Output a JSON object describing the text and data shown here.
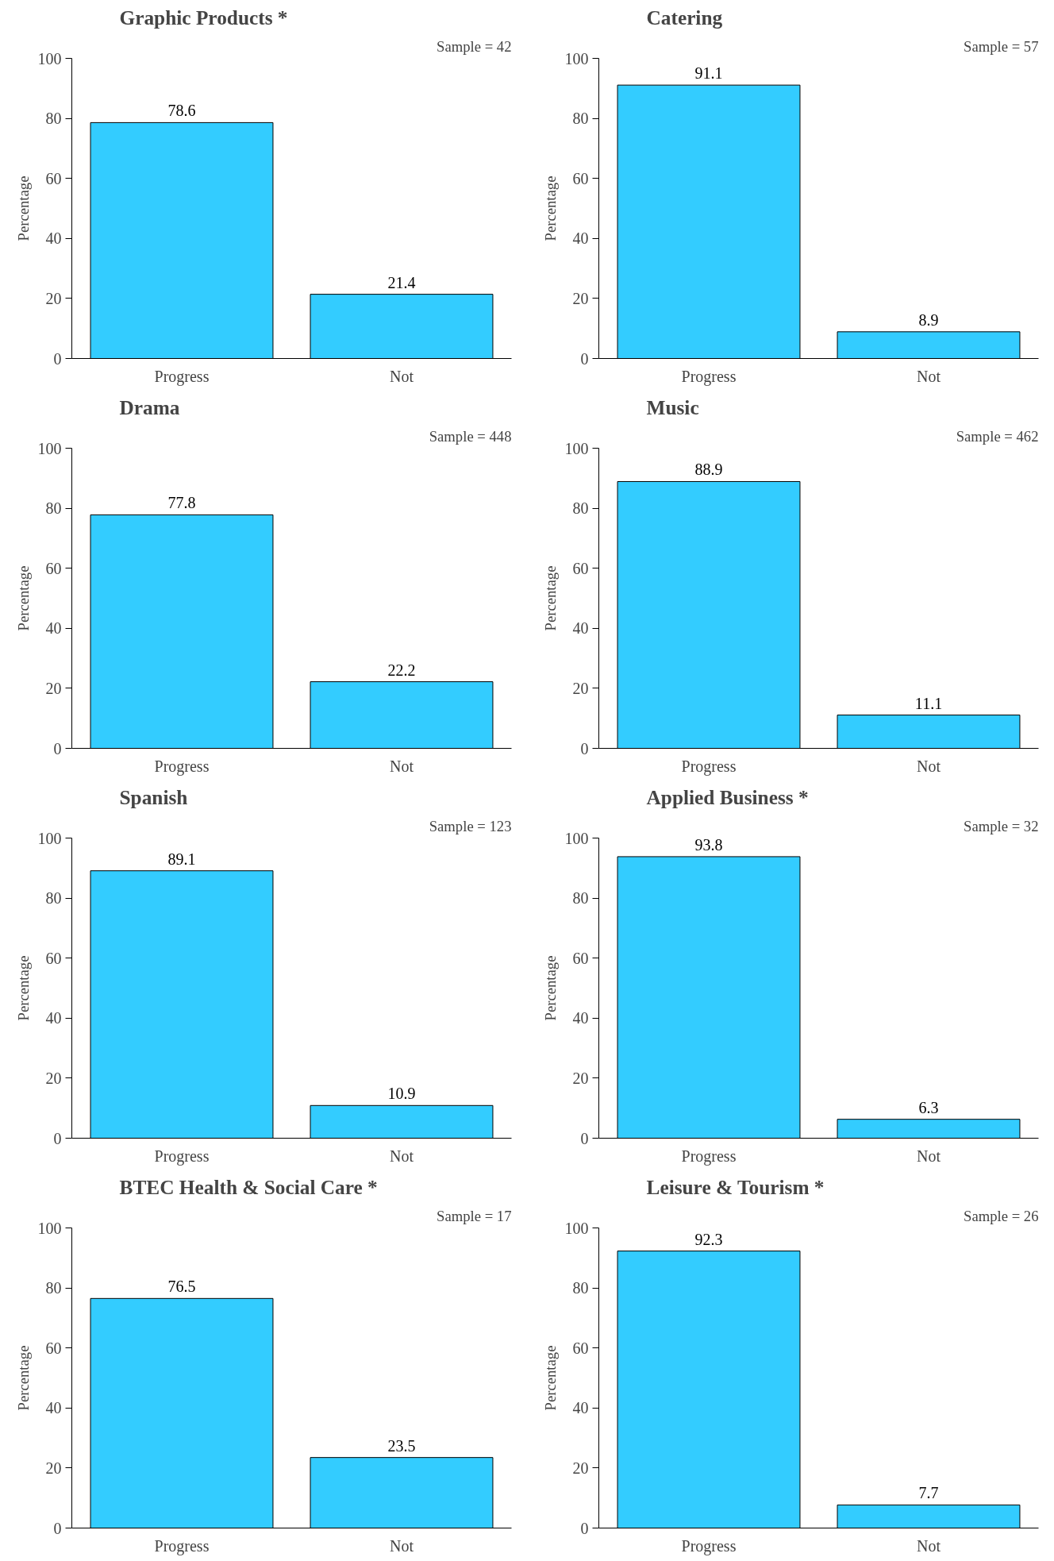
{
  "chart_data": [
    {
      "type": "bar",
      "title": "Graphic Products *",
      "ylabel": "Percentage",
      "annotations": [
        "Sample = 42"
      ],
      "categories": [
        "Progress",
        "Not"
      ],
      "values": [
        78.6,
        21.4
      ],
      "color": "#33ccff",
      "ylim": [
        0,
        100
      ],
      "yticks": [
        0,
        20,
        40,
        60,
        80,
        100
      ],
      "data_labels": true,
      "grid": false
    },
    {
      "type": "bar",
      "title": "Catering",
      "ylabel": "Percentage",
      "annotations": [
        "Sample = 57"
      ],
      "categories": [
        "Progress",
        "Not"
      ],
      "values": [
        91.1,
        8.9
      ],
      "color": "#33ccff",
      "ylim": [
        0,
        100
      ],
      "yticks": [
        0,
        20,
        40,
        60,
        80,
        100
      ],
      "data_labels": true,
      "grid": false
    },
    {
      "type": "bar",
      "title": "Drama",
      "ylabel": "Percentage",
      "annotations": [
        "Sample = 448"
      ],
      "categories": [
        "Progress",
        "Not"
      ],
      "values": [
        77.8,
        22.2
      ],
      "color": "#33ccff",
      "ylim": [
        0,
        100
      ],
      "yticks": [
        0,
        20,
        40,
        60,
        80,
        100
      ],
      "data_labels": true,
      "grid": false
    },
    {
      "type": "bar",
      "title": "Music",
      "ylabel": "Percentage",
      "annotations": [
        "Sample = 462"
      ],
      "categories": [
        "Progress",
        "Not"
      ],
      "values": [
        88.9,
        11.1
      ],
      "color": "#33ccff",
      "ylim": [
        0,
        100
      ],
      "yticks": [
        0,
        20,
        40,
        60,
        80,
        100
      ],
      "data_labels": true,
      "grid": false
    },
    {
      "type": "bar",
      "title": "Spanish",
      "ylabel": "Percentage",
      "annotations": [
        "Sample = 123"
      ],
      "categories": [
        "Progress",
        "Not"
      ],
      "values": [
        89.1,
        10.9
      ],
      "color": "#33ccff",
      "ylim": [
        0,
        100
      ],
      "yticks": [
        0,
        20,
        40,
        60,
        80,
        100
      ],
      "data_labels": true,
      "grid": false
    },
    {
      "type": "bar",
      "title": "Applied Business *",
      "ylabel": "Percentage",
      "annotations": [
        "Sample = 32"
      ],
      "categories": [
        "Progress",
        "Not"
      ],
      "values": [
        93.8,
        6.3
      ],
      "color": "#33ccff",
      "ylim": [
        0,
        100
      ],
      "yticks": [
        0,
        20,
        40,
        60,
        80,
        100
      ],
      "data_labels": true,
      "grid": false
    },
    {
      "type": "bar",
      "title": "BTEC Health & Social Care *",
      "ylabel": "Percentage",
      "annotations": [
        "Sample = 17"
      ],
      "categories": [
        "Progress",
        "Not"
      ],
      "values": [
        76.5,
        23.5
      ],
      "color": "#33ccff",
      "ylim": [
        0,
        100
      ],
      "yticks": [
        0,
        20,
        40,
        60,
        80,
        100
      ],
      "data_labels": true,
      "grid": false
    },
    {
      "type": "bar",
      "title": "Leisure & Tourism *",
      "ylabel": "Percentage",
      "annotations": [
        "Sample = 26"
      ],
      "categories": [
        "Progress",
        "Not"
      ],
      "values": [
        92.3,
        7.7
      ],
      "color": "#33ccff",
      "ylim": [
        0,
        100
      ],
      "yticks": [
        0,
        20,
        40,
        60,
        80,
        100
      ],
      "data_labels": true,
      "grid": false
    }
  ]
}
